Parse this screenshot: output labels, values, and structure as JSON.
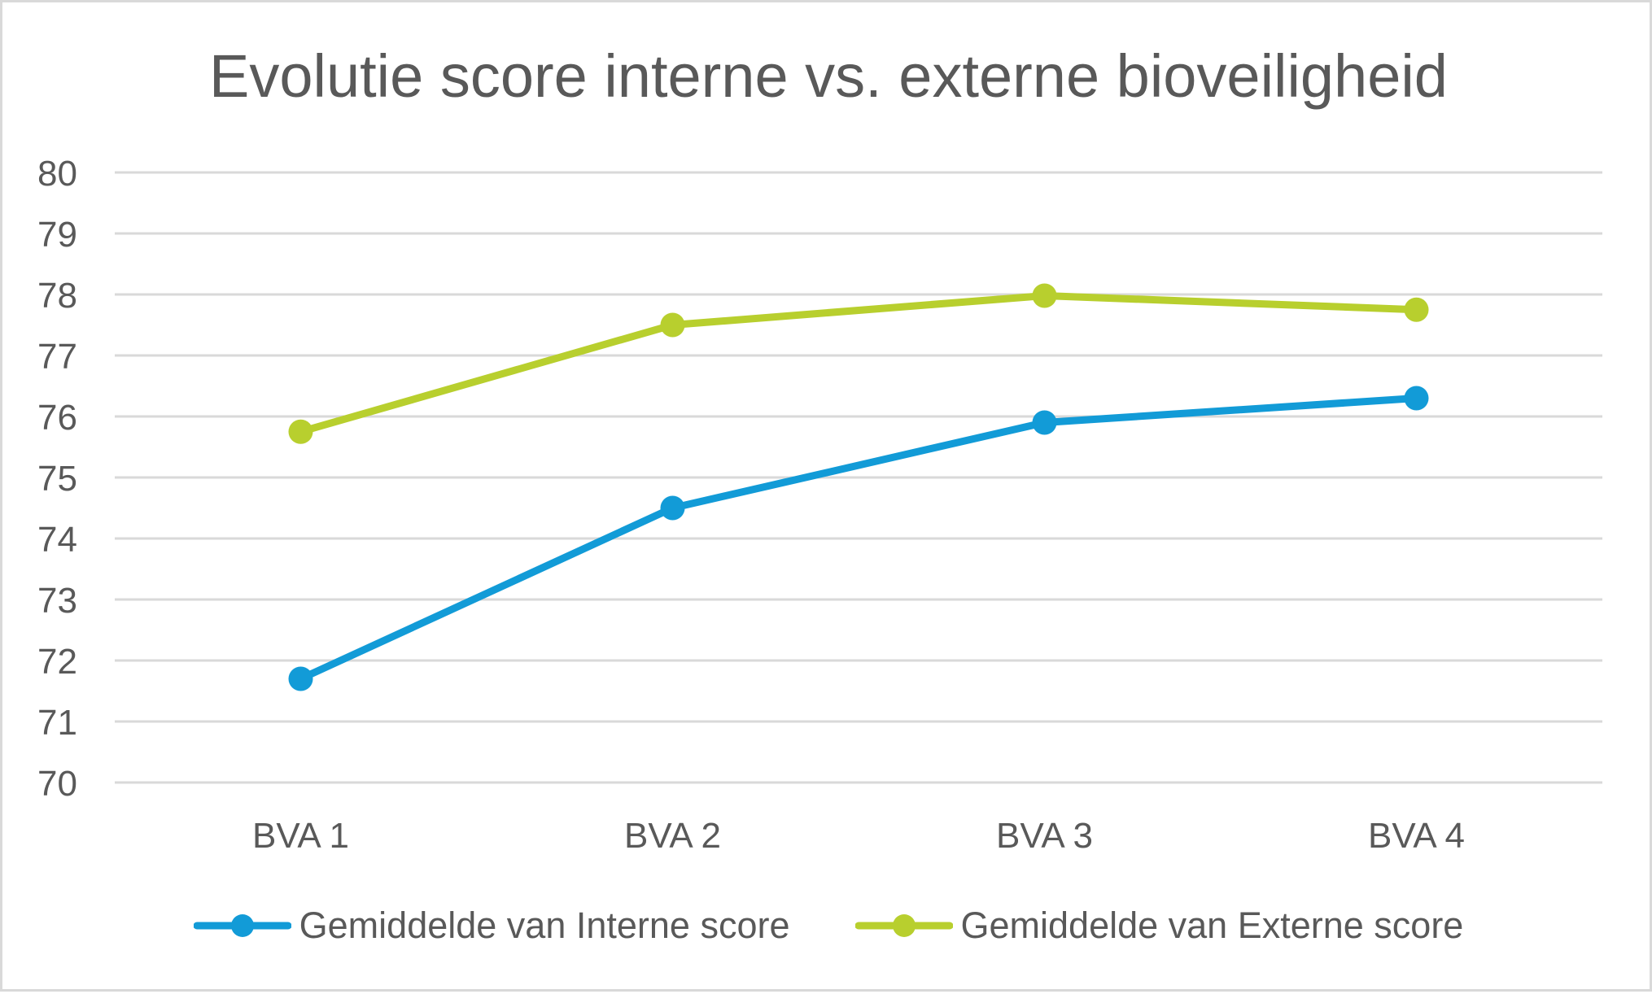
{
  "chart_data": {
    "type": "line",
    "title": "Evolutie score interne vs. externe bioveiligheid",
    "xlabel": "",
    "ylabel": "",
    "categories": [
      "BVA 1",
      "BVA 2",
      "BVA 3",
      "BVA 4"
    ],
    "ylim": [
      70,
      80
    ],
    "yticks": [
      70,
      71,
      72,
      73,
      74,
      75,
      76,
      77,
      78,
      79,
      80
    ],
    "grid": true,
    "legend_position": "bottom",
    "series": [
      {
        "name": "Gemiddelde van Interne score",
        "color": "#129bd7",
        "values": [
          71.7,
          74.5,
          75.9,
          76.3
        ]
      },
      {
        "name": "Gemiddelde van Externe score",
        "color": "#b8cf2e",
        "values": [
          75.75,
          77.5,
          77.98,
          77.75
        ]
      }
    ]
  }
}
